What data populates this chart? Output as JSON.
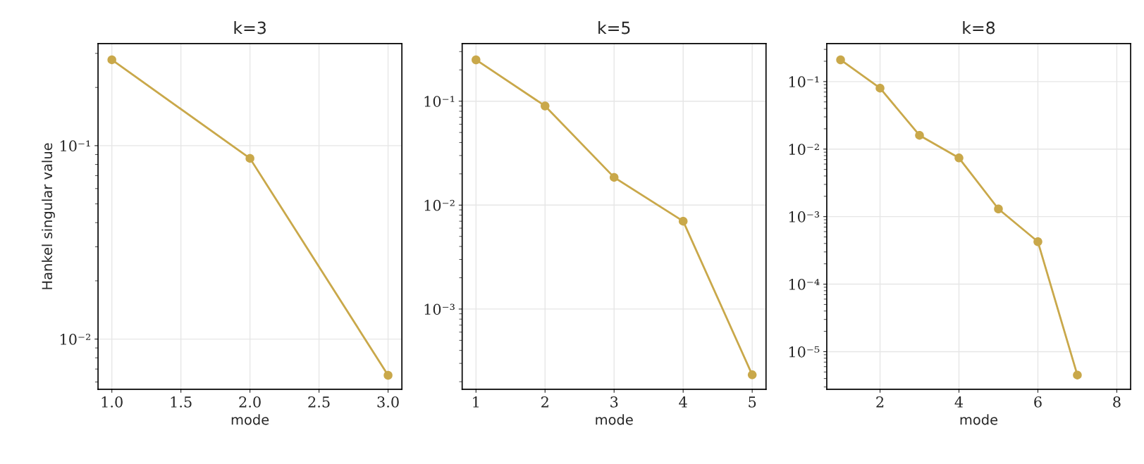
{
  "chart_data": [
    {
      "type": "line",
      "title": "k=3",
      "xlabel": "mode",
      "ylabel": "Hankel singular value",
      "x": [
        1,
        2,
        3
      ],
      "series": [
        {
          "color": "#c9a84a",
          "values": [
            0.278,
            0.086,
            0.0065
          ]
        }
      ],
      "log": "y",
      "grid": true,
      "marker": "circle",
      "line_style": "solid",
      "xlim": [
        0.9,
        3.1
      ],
      "xticks": [
        {
          "value": 1.0,
          "label": "1.0"
        },
        1.5,
        {
          "value": 2.0,
          "label": "2.0"
        },
        2.5,
        {
          "value": 3.0,
          "label": "3.0"
        }
      ],
      "ylim": [
        0.0055,
        0.337
      ],
      "yticks": [
        {
          "value": 0.01,
          "label": "10⁻²"
        },
        {
          "value": 0.1,
          "label": "10⁻¹"
        }
      ]
    },
    {
      "type": "line",
      "title": "k=5",
      "xlabel": "mode",
      "x": [
        1,
        2,
        3,
        4,
        5
      ],
      "series": [
        {
          "color": "#c9a84a",
          "values": [
            0.25,
            0.09,
            0.0185,
            0.007,
            0.000233
          ]
        }
      ],
      "log": "y",
      "grid": true,
      "marker": "circle",
      "line_style": "solid",
      "xlim": [
        0.8,
        5.2
      ],
      "xticks": [
        1,
        2,
        3,
        4,
        5
      ],
      "ylim": [
        0.000169,
        0.358
      ],
      "yticks": [
        {
          "value": 0.001,
          "label": "10⁻³"
        },
        {
          "value": 0.01,
          "label": "10⁻²"
        },
        {
          "value": 0.1,
          "label": "10⁻¹"
        }
      ]
    },
    {
      "type": "line",
      "title": "k=8",
      "xlabel": "mode",
      "x": [
        1,
        2,
        3,
        4,
        5,
        6,
        7
      ],
      "series": [
        {
          "color": "#c9a84a",
          "values": [
            0.21,
            0.08,
            0.016,
            0.0074,
            0.0013,
            0.000425,
            4.5e-06
          ]
        }
      ],
      "log": "y",
      "grid": true,
      "marker": "circle",
      "line_style": "solid",
      "xlim": [
        0.65,
        8.35
      ],
      "xticks": [
        2,
        4,
        6,
        8
      ],
      "ylim": [
        2.77e-06,
        0.365
      ],
      "yticks": [
        {
          "value": 1e-05,
          "label": "10⁻⁵"
        },
        {
          "value": 0.0001,
          "label": "10⁻⁴"
        },
        {
          "value": 0.001,
          "label": "10⁻³"
        },
        {
          "value": 0.01,
          "label": "10⁻²"
        },
        {
          "value": 0.1,
          "label": "10⁻¹"
        }
      ]
    }
  ]
}
